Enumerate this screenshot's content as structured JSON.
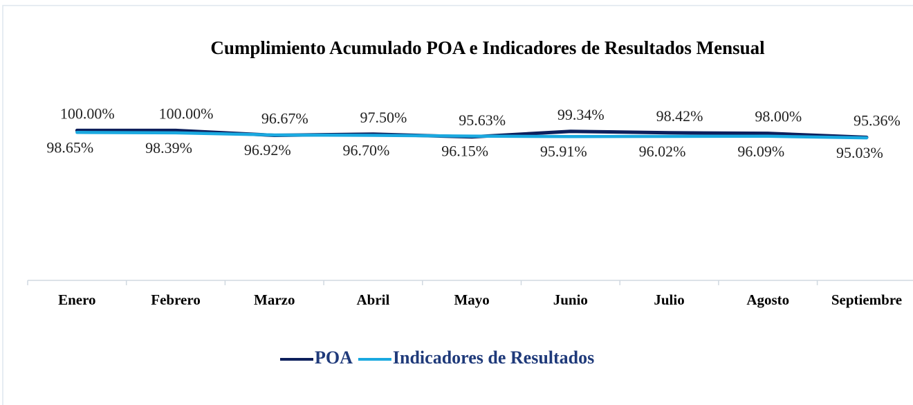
{
  "chart_data": {
    "type": "line",
    "title": "Cumplimiento Acumulado POA e Indicadores de Resultados Mensual",
    "categories": [
      "Enero",
      "Febrero",
      "Marzo",
      "Abril",
      "Mayo",
      "Junio",
      "Julio",
      "Agosto",
      "Septiembre"
    ],
    "series": [
      {
        "name": "POA",
        "color": "#0d1f5c",
        "values": [
          100.0,
          100.0,
          96.67,
          97.5,
          95.63,
          99.34,
          98.42,
          98.0,
          95.36
        ],
        "value_labels": [
          "100.00%",
          "100.00%",
          "96.67%",
          "97.50%",
          "95.63%",
          "99.34%",
          "98.42%",
          "98.00%",
          "95.36%"
        ]
      },
      {
        "name": "Indicadores de Resultados",
        "color": "#1aa9e0",
        "values": [
          98.65,
          98.39,
          96.92,
          96.7,
          96.15,
          95.91,
          96.02,
          96.09,
          95.03
        ],
        "value_labels": [
          "98.65%",
          "98.39%",
          "96.92%",
          "96.70%",
          "96.15%",
          "95.91%",
          "96.02%",
          "96.09%",
          "95.03%"
        ]
      }
    ],
    "ylim": [
      0,
      120
    ],
    "legend": "bottom"
  }
}
